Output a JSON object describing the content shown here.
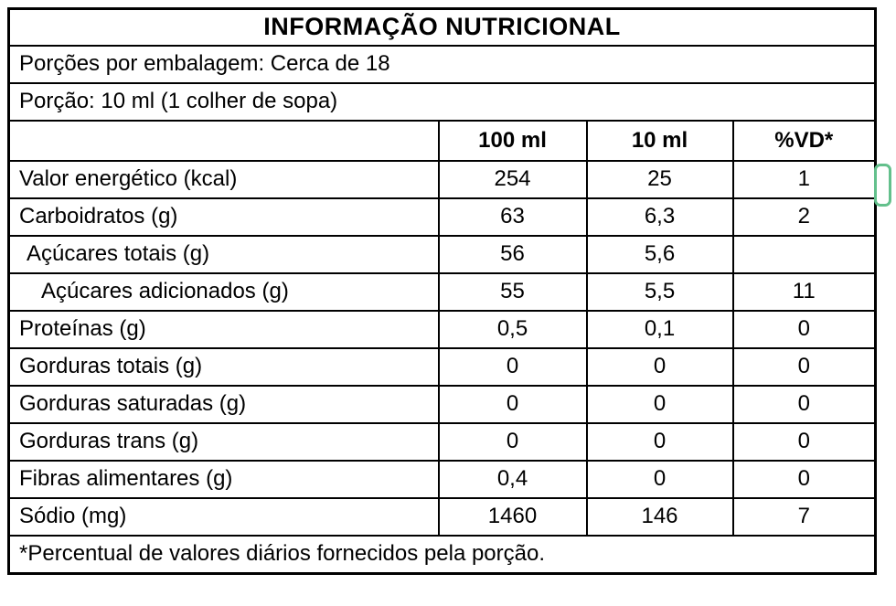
{
  "colors": {
    "border": "#000000",
    "background": "#ffffff",
    "bracket_green": "#63c08c"
  },
  "table": {
    "title": "INFORMAÇÃO NUTRICIONAL",
    "servings_line": "Porções por embalagem: Cerca de 18",
    "portion_line": "Porção: 10 ml (1 colher de sopa)",
    "columns": [
      "",
      "100 ml",
      "10 ml",
      "%VD*"
    ],
    "rows": [
      {
        "label": "Valor energético (kcal)",
        "v100": "254",
        "v10": "25",
        "vd": "1"
      },
      {
        "label": "Carboidratos (g)",
        "v100": "63",
        "v10": "6,3",
        "vd": "2"
      },
      {
        "label": "Açúcares totais (g)",
        "v100": "56",
        "v10": "5,6",
        "vd": ""
      },
      {
        "label": "Açúcares adicionados (g)",
        "v100": "55",
        "v10": "5,5",
        "vd": "11"
      },
      {
        "label": "Proteínas (g)",
        "v100": "0,5",
        "v10": "0,1",
        "vd": "0"
      },
      {
        "label": "Gorduras totais (g)",
        "v100": "0",
        "v10": "0",
        "vd": "0"
      },
      {
        "label": "Gorduras saturadas (g)",
        "v100": "0",
        "v10": "0",
        "vd": "0"
      },
      {
        "label": "Gorduras trans (g)",
        "v100": "0",
        "v10": "0",
        "vd": "0"
      },
      {
        "label": "Fibras alimentares (g)",
        "v100": "0,4",
        "v10": "0",
        "vd": "0"
      },
      {
        "label": "Sódio (mg)",
        "v100": "1460",
        "v10": "146",
        "vd": "7"
      }
    ],
    "footnote": "*Percentual de valores diários fornecidos pela porção."
  }
}
